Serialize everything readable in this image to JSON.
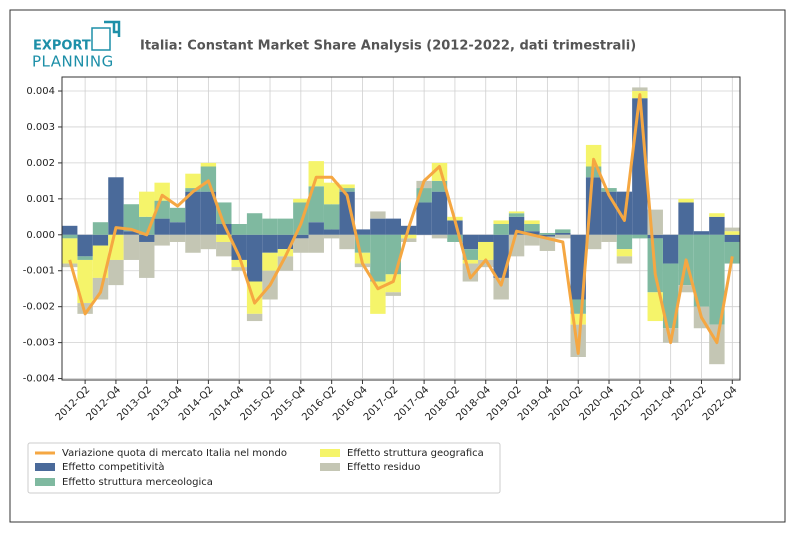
{
  "logo": {
    "line1": "EXPORT",
    "line2": "PLANNING"
  },
  "chart_data": {
    "type": "bar",
    "title": "Italia: Constant Market Share Analysis (2012-2022, dati trimestrali)",
    "categories": [
      null,
      "2012-Q2",
      null,
      "2012-Q4",
      null,
      "2013-Q2",
      null,
      "2013-Q4",
      null,
      "2014-Q2",
      null,
      "2014-Q4",
      null,
      "2015-Q2",
      null,
      "2015-Q4",
      null,
      "2016-Q2",
      null,
      "2016-Q4",
      null,
      "2017-Q2",
      null,
      "2017-Q4",
      null,
      "2018-Q2",
      null,
      "2018-Q4",
      null,
      "2019-Q2",
      null,
      "2019-Q4",
      null,
      "2020-Q2",
      null,
      "2020-Q4",
      null,
      "2021-Q2",
      null,
      "2021-Q4",
      null,
      "2022-Q2",
      null,
      "2022-Q4"
    ],
    "series": [
      {
        "name": "Effetto competitività",
        "color": "#4a6a9a",
        "values": [
          0.00025,
          -0.0006,
          -0.0003,
          0.0016,
          0.0001,
          -0.0002,
          0.00045,
          0.00035,
          0.0012,
          0.0012,
          0.0003,
          -0.0007,
          -0.0013,
          -0.0005,
          -0.0004,
          -0.0001,
          0.00035,
          0.00015,
          0.0012,
          0.00015,
          0.00045,
          0.00045,
          0.00025,
          0.0009,
          0.0012,
          0.0004,
          -0.0004,
          -0.0002,
          -0.0012,
          0.0005,
          0.0001,
          -5e-05,
          5e-05,
          -0.0018,
          0.0016,
          0.0012,
          0.0012,
          0.0038,
          -0.0001,
          -0.0008,
          0.0009,
          0.0001,
          0.0005,
          -0.0002
        ]
      },
      {
        "name": "Effetto struttura merceologica",
        "color": "#7fb9a0",
        "values": [
          -0.0001,
          -0.0001,
          0.00035,
          0.0,
          0.00075,
          0.0005,
          0.0005,
          0.0004,
          0.0001,
          0.0007,
          0.0006,
          0.0003,
          0.0006,
          0.00045,
          0.00045,
          0.0009,
          0.001,
          0.0007,
          0.0001,
          -0.0005,
          -0.0013,
          -0.0011,
          0.0,
          0.0004,
          0.0003,
          -0.0002,
          -0.0003,
          0.0,
          0.0003,
          0.0001,
          0.0002,
          5e-05,
          0.0001,
          -0.0004,
          0.0003,
          0.0001,
          -0.0004,
          -0.0001,
          -0.0015,
          -0.0018,
          -0.0014,
          -0.002,
          -0.0025,
          -0.0006
        ]
      },
      {
        "name": "Effetto struttura geografica",
        "color": "#f5f46a",
        "values": [
          -0.0007,
          -0.0012,
          -0.0009,
          -0.0007,
          0.0,
          0.0007,
          0.0005,
          0.0,
          0.0004,
          0.0001,
          -0.0002,
          -0.0002,
          -0.0009,
          -0.0005,
          -0.0002,
          0.0001,
          0.0007,
          0.0006,
          0.0001,
          -0.0003,
          -0.0009,
          -0.0005,
          -0.0001,
          0.0,
          0.0005,
          0.0001,
          -0.0001,
          -0.0005,
          0.0001,
          5e-05,
          0.0001,
          0.0,
          0.0,
          -0.0003,
          0.0006,
          0.0,
          -0.0002,
          0.0002,
          -0.0008,
          0.0,
          0.0001,
          0.0,
          0.0001,
          0.0001
        ]
      },
      {
        "name": "Effetto residuo",
        "color": "#c4c6b4",
        "values": [
          -0.0001,
          -0.0003,
          -0.0006,
          -0.0007,
          -0.0007,
          -0.001,
          -0.0003,
          -0.0002,
          -0.0005,
          -0.0004,
          -0.0004,
          -0.0001,
          -0.0002,
          -0.0008,
          -0.0004,
          -0.0004,
          -0.0005,
          -0.0001,
          -0.0004,
          -0.0001,
          0.0002,
          -0.0001,
          -0.0001,
          0.0002,
          -0.0001,
          0.0,
          -0.0005,
          -0.0002,
          -0.0006,
          -0.0006,
          -0.0003,
          -0.0004,
          -0.0001,
          -0.0009,
          -0.0004,
          -0.0002,
          -0.0002,
          0.0001,
          0.0007,
          -0.0004,
          -0.0002,
          -0.0006,
          -0.0011,
          0.0001
        ]
      }
    ],
    "line": {
      "name": "Variazione quota di mercato Italia nel mondo",
      "color": "#f5a742",
      "values": [
        -0.0007,
        -0.0022,
        -0.0016,
        0.0002,
        0.00015,
        0.0,
        0.0011,
        0.0008,
        0.0012,
        0.0015,
        0.0003,
        -0.0006,
        -0.0019,
        -0.0014,
        -0.0006,
        0.0003,
        0.0016,
        0.0016,
        0.0011,
        -0.0008,
        -0.0015,
        -0.0013,
        0.0002,
        0.0015,
        0.0019,
        0.0004,
        -0.0012,
        -0.0007,
        -0.0014,
        0.0001,
        0.0,
        -0.0001,
        -0.0002,
        -0.0033,
        0.0021,
        0.0011,
        0.0004,
        0.0039,
        -0.0011,
        -0.003,
        -0.0007,
        -0.0023,
        -0.003,
        -0.0006
      ]
    },
    "ylim": [
      -0.00404,
      0.00439
    ],
    "yticks": [
      -0.004,
      -0.003,
      -0.002,
      -0.001,
      {
        "value": 0,
        "label": "0.000"
      },
      0.001,
      0.002,
      0.003,
      0.004
    ],
    "grid": true
  }
}
